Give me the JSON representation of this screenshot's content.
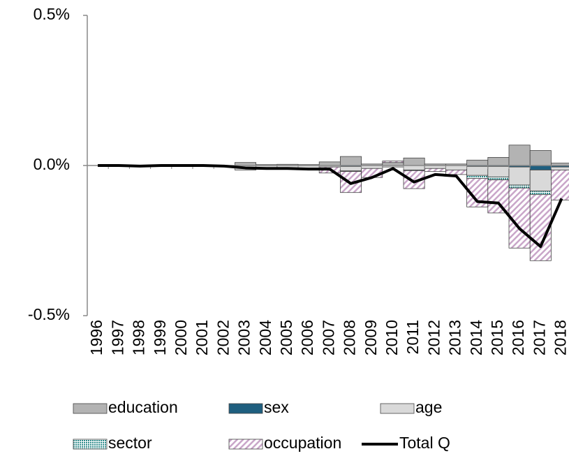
{
  "chart_data": {
    "type": "bar",
    "categories": [
      "1996",
      "1997",
      "1998",
      "1999",
      "2000",
      "2001",
      "2002",
      "2003",
      "2004",
      "2005",
      "2006",
      "2007",
      "2008",
      "2009",
      "2010",
      "2011",
      "2012",
      "2013",
      "2014",
      "2015",
      "2016",
      "2017",
      "2018"
    ],
    "ylim": [
      -0.5,
      0.5
    ],
    "yticks": [
      {
        "value": 0.5,
        "label": "0.5%"
      },
      {
        "value": 0,
        "label": "0.0%"
      },
      {
        "value": -0.5,
        "label": "-0.5%"
      }
    ],
    "series": [
      {
        "name": "education",
        "color": "#b3b3b3",
        "values": [
          0,
          0,
          0,
          0,
          0,
          0,
          0,
          0.01,
          0.003,
          0.004,
          0.003,
          0.012,
          0.03,
          0.005,
          0.01,
          0.025,
          0.005,
          0.005,
          0.018,
          0.027,
          0.068,
          0.05,
          0.008
        ]
      },
      {
        "name": "sex",
        "color": "#1f5f7f",
        "values": [
          0,
          0,
          0,
          0,
          0,
          0,
          0,
          0,
          0,
          0,
          0,
          0,
          -0.003,
          0,
          0,
          0,
          0,
          0,
          -0.003,
          -0.003,
          -0.005,
          -0.015,
          -0.005
        ]
      },
      {
        "name": "age",
        "color": "#d9d9d9",
        "values": [
          0,
          0,
          0,
          0,
          0,
          0,
          0,
          -0.015,
          -0.01,
          -0.008,
          -0.01,
          -0.005,
          -0.015,
          -0.01,
          -0.005,
          -0.015,
          -0.01,
          -0.015,
          -0.03,
          -0.035,
          -0.06,
          -0.07,
          -0.01
        ]
      },
      {
        "name": "sector",
        "color": "#2e8b8b",
        "pattern": "dots",
        "values": [
          0,
          0,
          0,
          0,
          0,
          0,
          0,
          0,
          0,
          0,
          0,
          0,
          -0.002,
          0,
          0,
          -0.002,
          0,
          0,
          -0.01,
          -0.01,
          -0.01,
          -0.012,
          0
        ]
      },
      {
        "name": "occupation",
        "color": "#c9a6c9",
        "pattern": "hatch",
        "values": [
          0,
          0,
          0,
          0,
          0,
          0,
          0,
          0,
          0,
          0,
          0,
          -0.02,
          -0.07,
          -0.03,
          0.005,
          -0.06,
          -0.01,
          -0.015,
          -0.095,
          -0.11,
          -0.2,
          -0.22,
          -0.1
        ]
      },
      {
        "name": "Total Q",
        "color": "#000000",
        "type": "line",
        "values": [
          0,
          0,
          -0.002,
          0,
          0,
          0,
          -0.002,
          -0.008,
          -0.01,
          -0.01,
          -0.012,
          -0.012,
          -0.06,
          -0.04,
          -0.01,
          -0.055,
          -0.03,
          -0.035,
          -0.12,
          -0.125,
          -0.21,
          -0.27,
          -0.11
        ]
      }
    ]
  }
}
